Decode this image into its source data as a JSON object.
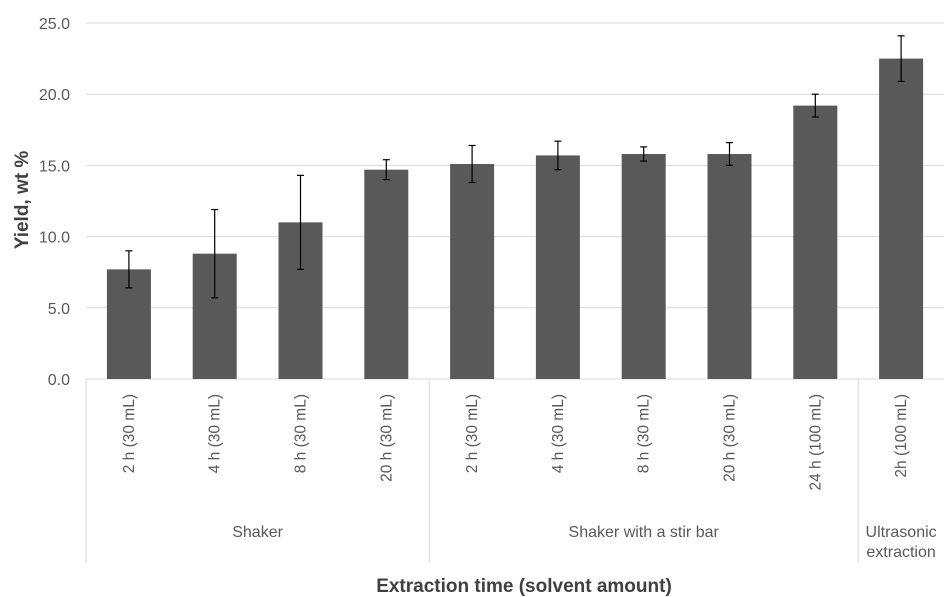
{
  "chart_data": {
    "type": "bar",
    "categories": [
      "2 h (30 mL)",
      "4 h (30 mL)",
      "8 h (30 mL)",
      "20 h (30 mL)",
      "2 h (30 mL)",
      "4 h (30 mL)",
      "8 h (30 mL)",
      "20 h (30 mL)",
      "24 h (100 mL)",
      "2h (100 mL)"
    ],
    "groups": [
      {
        "label": "Shaker",
        "count": 4
      },
      {
        "label": "Shaker with a stir bar",
        "count": 5
      },
      {
        "label": "Ultrasonic extraction",
        "count": 1
      }
    ],
    "series": [
      {
        "values": [
          7.7,
          8.8,
          11.0,
          14.7,
          15.1,
          15.7,
          15.8,
          15.8,
          19.2,
          22.5
        ],
        "error": [
          1.3,
          3.1,
          3.3,
          0.7,
          1.3,
          1.0,
          0.5,
          0.8,
          0.8,
          1.6
        ]
      }
    ],
    "ylabel": "Yield, wt %",
    "xlabel": "Extraction time (solvent amount)",
    "ylim": [
      0,
      25
    ],
    "yticks": [
      "0.0",
      "5.0",
      "10.0",
      "15.0",
      "20.0",
      "25.0"
    ],
    "grid": true,
    "colors": {
      "bar": "#595959",
      "grid": "#d9d9d9",
      "errorbar": "#000000"
    }
  }
}
